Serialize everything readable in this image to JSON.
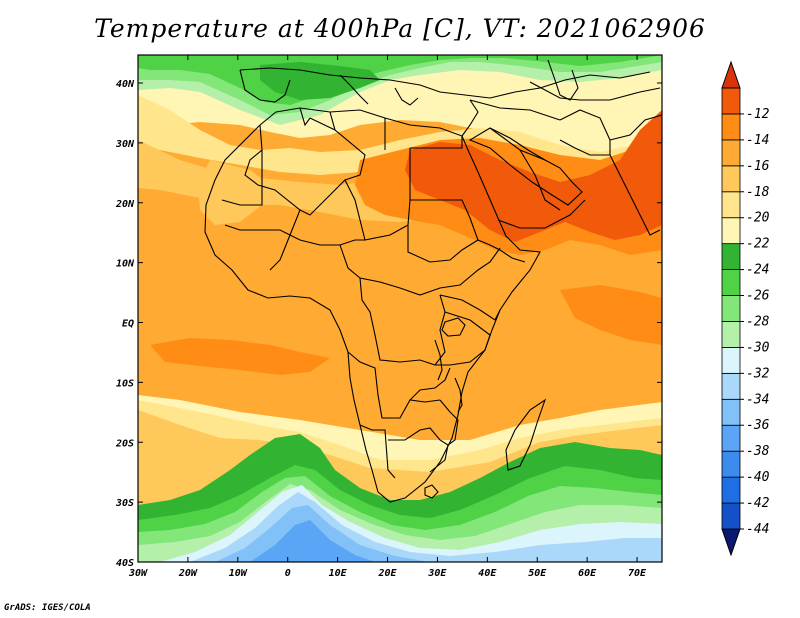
{
  "title": "Temperature at 400hPa [C], VT: 2021062906",
  "credit": "GrADS: IGES/COLA",
  "map": {
    "lon_ticks": [
      "30W",
      "20W",
      "10W",
      "0",
      "10E",
      "20E",
      "30E",
      "40E",
      "50E",
      "60E",
      "70E"
    ],
    "lat_ticks": [
      "40N",
      "30N",
      "20N",
      "10N",
      "EQ",
      "10S",
      "20S",
      "30S",
      "40S"
    ]
  },
  "colorbar": {
    "colors": [
      "#0a1a6e",
      "#1450c8",
      "#1e6ee6",
      "#3c8cf0",
      "#5aa5f5",
      "#82c0f8",
      "#aad8fa",
      "#dcf5fc",
      "#b4f0aa",
      "#82e678",
      "#50d246",
      "#32b432",
      "#fff5b4",
      "#ffe68c",
      "#ffc85a",
      "#ffaa32",
      "#ff8c14",
      "#f05a0a",
      "#dc320a"
    ],
    "labels": [
      "-44",
      "-42",
      "-40",
      "-38",
      "-36",
      "-34",
      "-32",
      "-30",
      "-28",
      "-26",
      "-24",
      "-22",
      "-20",
      "-18",
      "-16",
      "-14",
      "-12"
    ]
  },
  "field_colors": {
    "orange_main": "#ffaa32",
    "orange_light": "#ffc85a",
    "orange_deep": "#ff8c14",
    "red": "#f05a0a",
    "yellow": "#ffe68c",
    "pale_yellow": "#fff5b4",
    "green_dark": "#32b432",
    "green": "#50d246",
    "green_light": "#82e678",
    "green_pale": "#b4f0aa",
    "cyan_pale": "#dcf5fc",
    "blue_pale": "#aad8fa",
    "blue": "#82c0f8",
    "blue_mid": "#5aa5f5"
  }
}
